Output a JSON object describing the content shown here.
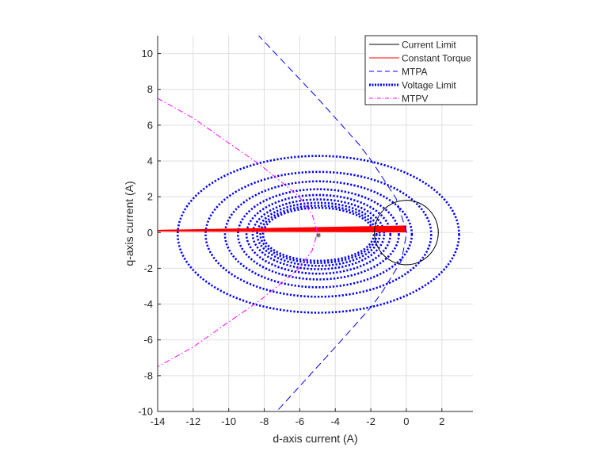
{
  "chart_data": {
    "type": "line",
    "xlabel": "d-axis current (A)",
    "ylabel": "q-axis current (A)",
    "xlim": [
      -14,
      3.75
    ],
    "ylim": [
      -10,
      11
    ],
    "xticks": [
      -14,
      -12,
      -10,
      -8,
      -6,
      -4,
      -2,
      0,
      2
    ],
    "yticks": [
      -10,
      -8,
      -6,
      -4,
      -2,
      0,
      2,
      4,
      6,
      8,
      10
    ],
    "grid": true,
    "legend_placement": "top-right",
    "legend": [
      "Current Limit",
      "Constant Torque",
      "MTPA",
      "Voltage Limit",
      "MTPV"
    ],
    "colors": {
      "current_limit": "#000000",
      "constant_torque": "#ff0000",
      "mtpa": "#0000ff",
      "voltage_limit": "#0000ff",
      "mtpv": "#ff00ff",
      "grid": "#dfdfdf"
    },
    "current_limit": {
      "center": [
        0,
        0
      ],
      "radius": 1.8
    },
    "constant_torque": {
      "start": [
        -14,
        0.1
      ],
      "end_y_values": [
        0.05,
        0.1,
        0.15,
        0.2,
        0.25,
        0.3,
        0.35
      ]
    },
    "mtpa": {
      "x": [
        -8.38,
        -5.04,
        -2.67,
        -1.92,
        -0.58,
        0.02,
        -0.27,
        -1.34,
        -1.92,
        -3.79,
        -7.18,
        -7.3
      ],
      "y": [
        11.07,
        7.56,
        4.93,
        3.95,
        1.91,
        0,
        -1.56,
        -3.29,
        -4.09,
        -6.18,
        -9.87,
        -10
      ]
    },
    "voltage_limit": {
      "center": [
        -4.95,
        -0.1
      ],
      "semi_axis_d": [
        7.92,
        6.35,
        5.26,
        4.53,
        4.05,
        3.7,
        3.45,
        3.27,
        3.12
      ],
      "semi_axis_q": [
        4.38,
        3.49,
        2.96,
        2.52,
        2.2,
        1.95,
        1.76,
        1.6,
        1.48
      ]
    },
    "mtpv": {
      "x": [
        -14,
        -12,
        -10,
        -8.25,
        -6.06,
        -5.3,
        -5.0,
        -5.3,
        -6.06,
        -8.25,
        -10,
        -12,
        -14
      ],
      "y": [
        7.5,
        6.4,
        5.0,
        3.8,
        2.04,
        1.0,
        0,
        -1.0,
        -2.04,
        -3.8,
        -5.0,
        -6.4,
        -7.5
      ]
    },
    "marker_point": [
      -4.95,
      -0.15
    ]
  }
}
